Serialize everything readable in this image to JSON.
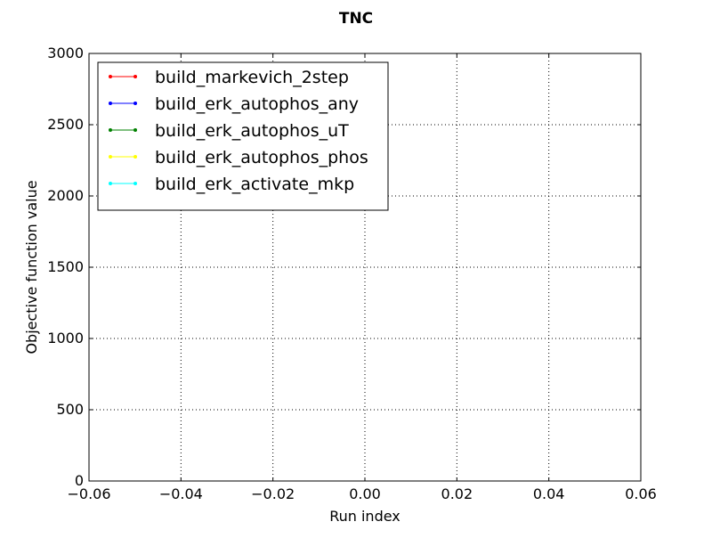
{
  "chart_data": {
    "type": "line",
    "title": "TNC",
    "xlabel": "Run index",
    "ylabel": "Objective function value",
    "xlim": [
      -0.06,
      0.06
    ],
    "ylim": [
      0,
      3000
    ],
    "x_ticks": [
      -0.06,
      -0.04,
      -0.02,
      0.0,
      0.02,
      0.04,
      0.06
    ],
    "x_tick_labels": [
      "−0.06",
      "−0.04",
      "−0.02",
      "0.00",
      "0.02",
      "0.04",
      "0.06"
    ],
    "y_ticks": [
      0,
      500,
      1000,
      1500,
      2000,
      2500,
      3000
    ],
    "y_tick_labels": [
      "0",
      "500",
      "1000",
      "1500",
      "2000",
      "2500",
      "3000"
    ],
    "grid": true,
    "legend_position": "top-left",
    "series": [
      {
        "name": "build_markevich_2step",
        "color": "#ff0000",
        "x": [],
        "y": []
      },
      {
        "name": "build_erk_autophos_any",
        "color": "#0000ff",
        "x": [],
        "y": []
      },
      {
        "name": "build_erk_autophos_uT",
        "color": "#008000",
        "x": [],
        "y": []
      },
      {
        "name": "build_erk_autophos_phos",
        "color": "#ffff00",
        "x": [],
        "y": []
      },
      {
        "name": "build_erk_activate_mkp",
        "color": "#00ffff",
        "x": [],
        "y": []
      }
    ]
  }
}
